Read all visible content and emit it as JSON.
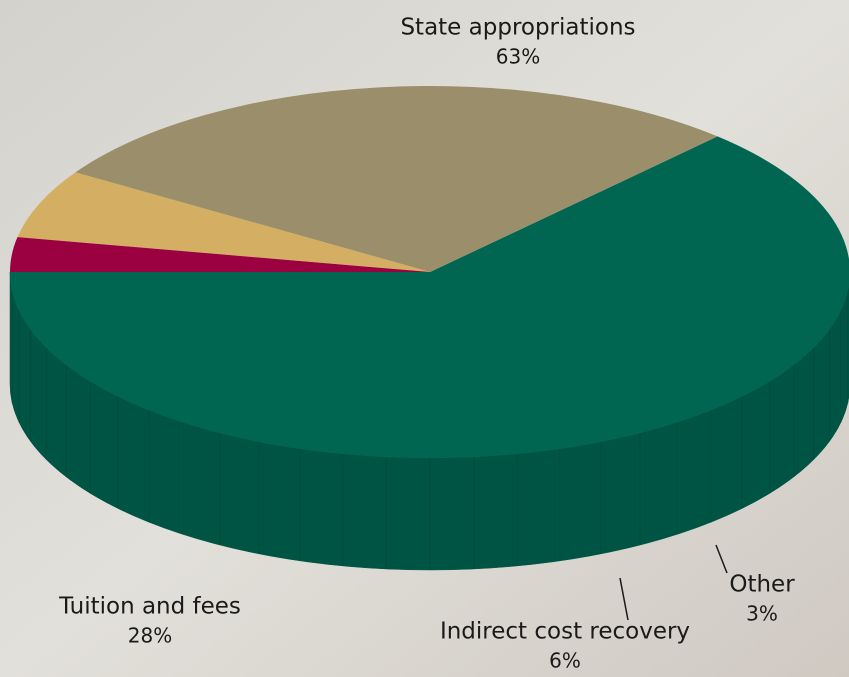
{
  "chart_data": {
    "type": "pie3d",
    "categories": [
      "State appropriations",
      "Tuition and fees",
      "Indirect cost recovery",
      "Other"
    ],
    "values": [
      63,
      28,
      6,
      3
    ],
    "value_labels": [
      "63%",
      "28%",
      "6%",
      "3%"
    ],
    "colors": [
      "#006652",
      "#9a8f6a",
      "#d4ae62",
      "#9b0040"
    ]
  }
}
